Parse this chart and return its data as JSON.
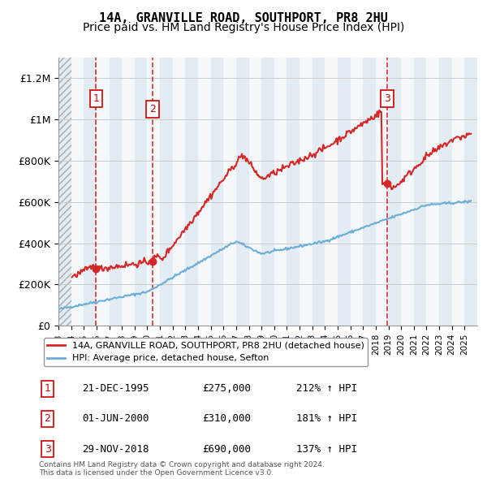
{
  "title1": "14A, GRANVILLE ROAD, SOUTHPORT, PR8 2HU",
  "title2": "Price paid vs. HM Land Registry's House Price Index (HPI)",
  "ylabel": "",
  "ylim": [
    0,
    1300000
  ],
  "yticks": [
    0,
    200000,
    400000,
    600000,
    800000,
    1000000,
    1200000
  ],
  "ytick_labels": [
    "£0",
    "£200K",
    "£400K",
    "£600K",
    "£800K",
    "£1M",
    "£1.2M"
  ],
  "xlim_start": 1993,
  "xlim_end": 2026,
  "transactions": [
    {
      "date": 1995.97,
      "price": 275000,
      "label": "1"
    },
    {
      "date": 2000.42,
      "price": 310000,
      "label": "2"
    },
    {
      "date": 2018.91,
      "price": 690000,
      "label": "3"
    }
  ],
  "vline_dates": [
    1995.97,
    2000.42,
    2018.91
  ],
  "hpi_color": "#6baed6",
  "price_color": "#d62728",
  "background_hatched_color": "#d0e0f0",
  "legend_label_price": "14A, GRANVILLE ROAD, SOUTHPORT, PR8 2HU (detached house)",
  "legend_label_hpi": "HPI: Average price, detached house, Sefton",
  "table_rows": [
    {
      "num": "1",
      "date": "21-DEC-1995",
      "price": "£275,000",
      "hpi": "212% ↑ HPI"
    },
    {
      "num": "2",
      "date": "01-JUN-2000",
      "price": "£310,000",
      "hpi": "181% ↑ HPI"
    },
    {
      "num": "3",
      "date": "29-NOV-2018",
      "price": "£690,000",
      "hpi": "137% ↑ HPI"
    }
  ],
  "footer": "Contains HM Land Registry data © Crown copyright and database right 2024.\nThis data is licensed under the Open Government Licence v3.0.",
  "title_fontsize": 11,
  "subtitle_fontsize": 10
}
